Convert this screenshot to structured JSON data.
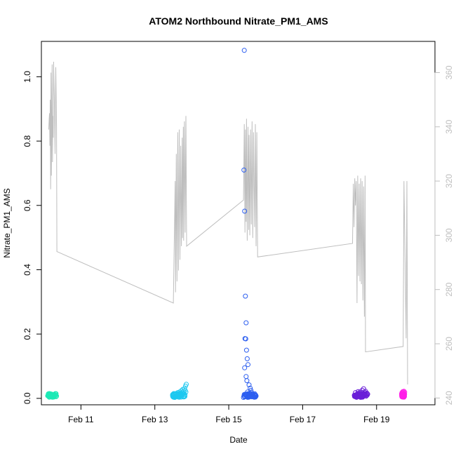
{
  "chart_data": {
    "type": "scatter",
    "title": "ATOM2 Northbound Nitrate_PM1_AMS",
    "xlabel": "Date",
    "ylabel": "Nitrate_PM1_AMS",
    "x_unit": "days in February",
    "xlim": [
      9.93,
      20.58
    ],
    "ylim": [
      -0.02,
      1.11
    ],
    "x_ticks": [
      {
        "value": 11,
        "label": "Feb 11"
      },
      {
        "value": 13,
        "label": "Feb 13"
      },
      {
        "value": 15,
        "label": "Feb 15"
      },
      {
        "value": 17,
        "label": "Feb 17"
      },
      {
        "value": 19,
        "label": "Feb 19"
      }
    ],
    "y_ticks": [
      {
        "value": 0.0,
        "label": "0.0"
      },
      {
        "value": 0.2,
        "label": "0.2"
      },
      {
        "value": 0.4,
        "label": "0.4"
      },
      {
        "value": 0.6,
        "label": "0.6"
      },
      {
        "value": 0.8,
        "label": "0.8"
      },
      {
        "value": 1.0,
        "label": "1.0"
      }
    ],
    "right_axis": {
      "ylim": [
        237.5,
        371.5
      ],
      "color": "#bebebe",
      "ticks": [
        {
          "value": 240,
          "label": "240"
        },
        {
          "value": 260,
          "label": "260"
        },
        {
          "value": 280,
          "label": "280"
        },
        {
          "value": 300,
          "label": "300"
        },
        {
          "value": 320,
          "label": "320"
        },
        {
          "value": 340,
          "label": "340"
        },
        {
          "value": 360,
          "label": "360"
        }
      ]
    },
    "grid": false,
    "legend": "none",
    "series": [
      {
        "color": "#1de9b6",
        "x": [
          10.1,
          10.12,
          10.14,
          10.15,
          10.16,
          10.18,
          10.19,
          10.2,
          10.22,
          10.23,
          10.25,
          10.26,
          10.28,
          10.3,
          10.32,
          10.34
        ],
        "y": [
          0.008,
          0.011,
          0.006,
          0.012,
          0.009,
          0.005,
          0.01,
          0.013,
          0.007,
          0.011,
          0.006,
          0.009,
          0.012,
          0.008,
          0.01,
          0.007
        ]
      },
      {
        "color": "#1ec8f0",
        "x": [
          13.48,
          13.5,
          13.52,
          13.55,
          13.57,
          13.6,
          13.62,
          13.65,
          13.67,
          13.7,
          13.72,
          13.74,
          13.76,
          13.78,
          13.8,
          13.82,
          13.83,
          13.85,
          13.55,
          13.62,
          13.7,
          13.78,
          13.84,
          13.66
        ],
        "y": [
          0.01,
          0.008,
          0.012,
          0.007,
          0.015,
          0.011,
          0.018,
          0.013,
          0.02,
          0.016,
          0.024,
          0.019,
          0.028,
          0.022,
          0.03,
          0.025,
          0.038,
          0.044,
          0.006,
          0.009,
          0.012,
          0.015,
          0.02,
          0.005
        ],
        "noise": true
      },
      {
        "color": "#2d5ff0",
        "x": [
          15.42,
          15.41,
          15.43,
          15.45,
          15.47,
          15.44,
          15.46,
          15.48,
          15.5,
          15.52,
          15.43,
          15.47,
          15.49,
          15.55,
          15.58,
          15.6,
          15.62,
          15.64,
          15.66,
          15.68,
          15.7,
          15.72,
          15.74,
          15.45,
          15.51,
          15.57,
          15.63,
          15.69,
          15.4,
          15.53
        ],
        "y": [
          1.082,
          0.71,
          0.582,
          0.318,
          0.235,
          0.186,
          0.185,
          0.15,
          0.123,
          0.105,
          0.095,
          0.068,
          0.055,
          0.042,
          0.032,
          0.025,
          0.018,
          0.012,
          0.008,
          0.006,
          0.01,
          0.004,
          0.007,
          0.013,
          0.02,
          0.015,
          0.009,
          0.005,
          0.003,
          0.011
        ],
        "noise": true
      },
      {
        "color": "#6a1fd8",
        "x": [
          18.4,
          18.43,
          18.46,
          18.49,
          18.52,
          18.55,
          18.58,
          18.61,
          18.63,
          18.65,
          18.67,
          18.7,
          18.72,
          18.74,
          18.76,
          18.45,
          18.5,
          18.56,
          18.62,
          18.68
        ],
        "y": [
          0.01,
          0.018,
          0.006,
          0.014,
          0.009,
          0.02,
          0.012,
          0.025,
          0.015,
          0.03,
          0.011,
          0.022,
          0.008,
          0.016,
          0.013,
          0.005,
          0.021,
          0.017,
          0.01,
          0.019
        ],
        "noise": true
      },
      {
        "color": "#ff1fe8",
        "x": [
          19.68,
          19.69,
          19.7,
          19.71,
          19.72,
          19.73,
          19.74,
          19.75,
          19.76,
          19.7,
          19.72,
          19.74
        ],
        "y": [
          0.012,
          0.018,
          0.015,
          0.021,
          0.011,
          0.016,
          0.022,
          0.013,
          0.019,
          0.01,
          0.02,
          0.014
        ]
      }
    ],
    "secondary_line": {
      "axis": "right",
      "color": "#bebebe",
      "x": [
        10.13,
        10.14,
        10.15,
        10.16,
        10.17,
        10.18,
        10.19,
        10.2,
        10.21,
        10.22,
        10.23,
        10.24,
        10.25,
        10.26,
        10.28,
        10.3,
        10.32,
        10.34,
        10.35,
        13.5,
        13.55,
        13.56,
        13.58,
        13.6,
        13.62,
        13.64,
        13.66,
        13.68,
        13.7,
        13.72,
        13.74,
        13.75,
        13.77,
        13.78,
        13.8,
        13.82,
        13.84,
        13.86,
        15.4,
        15.42,
        15.44,
        15.45,
        15.47,
        15.48,
        15.5,
        15.52,
        15.54,
        15.55,
        15.57,
        15.59,
        15.61,
        15.63,
        15.65,
        15.67,
        15.7,
        15.72,
        15.74,
        15.76,
        15.78,
        18.35,
        18.37,
        18.39,
        18.41,
        18.43,
        18.45,
        18.47,
        18.49,
        18.51,
        18.53,
        18.55,
        18.57,
        18.59,
        18.61,
        18.63,
        18.65,
        18.67,
        18.69,
        18.7,
        19.72,
        19.74,
        19.76,
        19.78,
        19.8,
        19.82,
        19.84
      ],
      "y": [
        339,
        343,
        345,
        333,
        350,
        317,
        360,
        322,
        338,
        363,
        327,
        344,
        336,
        364,
        351,
        330,
        362,
        340,
        294,
        275,
        320,
        279,
        330,
        283,
        338,
        287,
        339,
        291,
        333,
        296,
        336,
        299,
        340,
        298,
        342,
        301,
        344,
        296,
        313,
        341,
        301,
        339,
        305,
        343,
        298,
        340,
        302,
        337,
        300,
        339,
        304,
        342,
        299,
        338,
        303,
        341,
        296,
        338,
        292,
        297,
        319,
        303,
        321,
        311,
        320,
        275,
        322,
        285,
        319,
        283,
        321,
        282,
        320,
        276,
        318,
        270,
        322,
        257,
        259,
        320,
        302,
        282,
        262,
        320,
        245
      ]
    }
  }
}
